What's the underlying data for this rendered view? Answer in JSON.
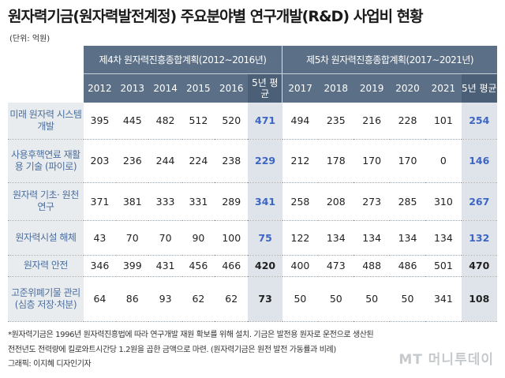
{
  "title": "원자력기금(원자력발전계정) 주요분야별 연구개발(R&D) 사업비 현황",
  "unit": "(단위: 억원)",
  "periods": [
    "제4차 원자력진흥종합계획(2012∼2016년)",
    "제5차 원자력진흥종합계획(2017∼2021년)"
  ],
  "years": [
    "2012",
    "2013",
    "2014",
    "2015",
    "2016",
    "5년 평균",
    "2017",
    "2018",
    "2019",
    "2020",
    "2021",
    "5년 평균"
  ],
  "rows": [
    {
      "label": "미래 원자력 시스템 개발",
      "values": [
        "395",
        "445",
        "482",
        "512",
        "520",
        "471",
        "494",
        "235",
        "216",
        "228",
        "101",
        "254"
      ]
    },
    {
      "label": "사용후핵연료 재활용 기술 (파이로)",
      "values": [
        "203",
        "236",
        "244",
        "224",
        "238",
        "229",
        "212",
        "178",
        "170",
        "170",
        "0",
        "146"
      ]
    },
    {
      "label": "원자력 기초· 원천 연구",
      "values": [
        "371",
        "381",
        "333",
        "331",
        "289",
        "341",
        "258",
        "208",
        "273",
        "285",
        "310",
        "267"
      ]
    },
    {
      "label": "원자력시설 해체",
      "values": [
        "43",
        "70",
        "70",
        "90",
        "100",
        "75",
        "122",
        "134",
        "134",
        "134",
        "134",
        "132"
      ]
    },
    {
      "label": "원자력 안전",
      "values": [
        "346",
        "399",
        "431",
        "456",
        "466",
        "420",
        "400",
        "473",
        "488",
        "486",
        "501",
        "470"
      ]
    },
    {
      "label": "고준위폐기물 관리(심층 저장·처분)",
      "values": [
        "64",
        "86",
        "93",
        "62",
        "62",
        "73",
        "50",
        "50",
        "50",
        "50",
        "341",
        "108"
      ]
    }
  ],
  "footnote": [
    "*원자력기금은 1996년 원자력진흥법에 따라 연구개발 재원 확보를 위해 설치. 기금은 발전용 원자로 운전으로 생산된",
    "전전년도 전력량에 킬로와트시간당 1.2원을 곱한 금액으로 마련. (원자력기금은 원전 발전 가동률과 비례)",
    "그래픽: 이지혜 디자인기자"
  ],
  "logo": "MT 머니투데이",
  "colors": {
    "header": "#5b6f86",
    "label_bg": "#e9ecef",
    "avg_bg": "#dfe4ea",
    "highlight": "#3d66c4"
  }
}
